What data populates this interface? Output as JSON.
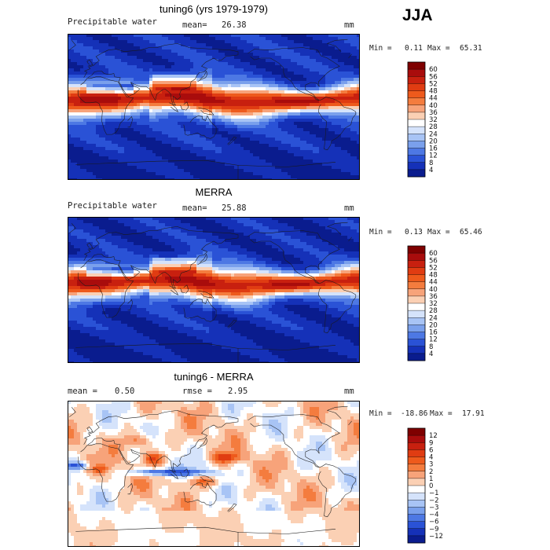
{
  "season_label": "JJA",
  "chart_data": [
    {
      "type": "heatmap",
      "title": "tuning6 (yrs 1979-1979)",
      "variable": "Precipitable water",
      "mean_label": "mean=",
      "mean_value": "26.38",
      "units": "mm",
      "min_label": "Min =",
      "min_value": "0.11",
      "max_label": "Max =",
      "max_value": "65.31",
      "colorbar": {
        "ticks": [
          "60",
          "56",
          "52",
          "48",
          "44",
          "40",
          "36",
          "32",
          "28",
          "24",
          "20",
          "16",
          "12",
          "8",
          "4"
        ],
        "colors": [
          "#7f0000",
          "#a90c0c",
          "#c8200f",
          "#e03c12",
          "#ee5a1c",
          "#f47c3e",
          "#f7a37a",
          "#fbd0b4",
          "#ffffff",
          "#d5e3fb",
          "#a8c4f5",
          "#7aa0ec",
          "#4d78e4",
          "#2a52d6",
          "#1531b8",
          "#0a1c8e"
        ]
      }
    },
    {
      "type": "heatmap",
      "title": "MERRA",
      "variable": "Precipitable water",
      "mean_label": "mean=",
      "mean_value": "25.88",
      "units": "mm",
      "min_label": "Min =",
      "min_value": "0.13",
      "max_label": "Max =",
      "max_value": "65.46",
      "colorbar": {
        "ticks": [
          "60",
          "56",
          "52",
          "48",
          "44",
          "40",
          "36",
          "32",
          "28",
          "24",
          "20",
          "16",
          "12",
          "8",
          "4"
        ],
        "colors": [
          "#7f0000",
          "#a90c0c",
          "#c8200f",
          "#e03c12",
          "#ee5a1c",
          "#f47c3e",
          "#f7a37a",
          "#fbd0b4",
          "#ffffff",
          "#d5e3fb",
          "#a8c4f5",
          "#7aa0ec",
          "#4d78e4",
          "#2a52d6",
          "#1531b8",
          "#0a1c8e"
        ]
      }
    },
    {
      "type": "heatmap",
      "title": "tuning6 - MERRA",
      "mean_label": "mean =",
      "mean_value": "0.50",
      "rmse_label": "rmse =",
      "rmse_value": "2.95",
      "units": "mm",
      "min_label": "Min =",
      "min_value": "-18.86",
      "max_label": "Max =",
      "max_value": "17.91",
      "colorbar": {
        "ticks": [
          "12",
          "9",
          "6",
          "4",
          "3",
          "2",
          "1",
          "0",
          "−1",
          "−2",
          "−3",
          "−4",
          "−6",
          "−9",
          "−12"
        ],
        "colors": [
          "#7f0000",
          "#a90c0c",
          "#c8200f",
          "#e03c12",
          "#ee5a1c",
          "#f47c3e",
          "#f7a37a",
          "#fbd0b4",
          "#ffffff",
          "#d5e3fb",
          "#a8c4f5",
          "#7aa0ec",
          "#4d78e4",
          "#2a52d6",
          "#1531b8",
          "#0a1c8e"
        ]
      }
    }
  ]
}
